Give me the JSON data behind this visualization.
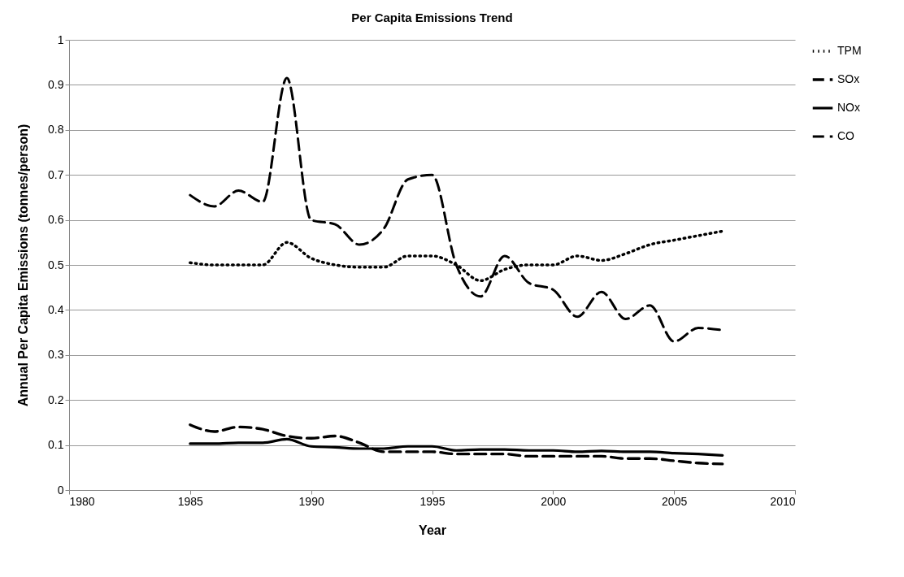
{
  "chart_data": {
    "type": "line",
    "title": "Per Capita Emissions Trend",
    "xlabel": "Year",
    "ylabel": "Annual Per Capita  Emissions (tonnes/person)",
    "x": [
      1985,
      1986,
      1987,
      1988,
      1989,
      1990,
      1991,
      1992,
      1993,
      1994,
      1995,
      1996,
      1997,
      1998,
      1999,
      2000,
      2001,
      2002,
      2003,
      2004,
      2005,
      2006,
      2007
    ],
    "series": [
      {
        "name": "TPM",
        "color": "#000000",
        "line_style": "dotted",
        "values": [
          0.505,
          0.5,
          0.5,
          0.5,
          0.55,
          0.515,
          0.5,
          0.495,
          0.495,
          0.52,
          0.52,
          0.5,
          0.465,
          0.49,
          0.5,
          0.5,
          0.52,
          0.51,
          0.525,
          0.545,
          0.555,
          0.565,
          0.575
        ]
      },
      {
        "name": "SOx",
        "color": "#000000",
        "line_style": "dashed",
        "values": [
          0.145,
          0.13,
          0.14,
          0.135,
          0.12,
          0.115,
          0.12,
          0.105,
          0.085,
          0.085,
          0.085,
          0.08,
          0.08,
          0.08,
          0.075,
          0.075,
          0.075,
          0.075,
          0.07,
          0.07,
          0.065,
          0.06,
          0.058
        ]
      },
      {
        "name": "NOx",
        "color": "#000000",
        "line_style": "solid",
        "values": [
          0.103,
          0.103,
          0.105,
          0.105,
          0.113,
          0.097,
          0.095,
          0.092,
          0.092,
          0.097,
          0.097,
          0.088,
          0.09,
          0.09,
          0.088,
          0.088,
          0.085,
          0.087,
          0.085,
          0.085,
          0.082,
          0.08,
          0.077
        ]
      },
      {
        "name": "CO",
        "color": "#000000",
        "line_style": "dashed",
        "values": [
          0.655,
          0.63,
          0.665,
          0.64,
          0.915,
          0.6,
          0.59,
          0.545,
          0.58,
          0.69,
          0.7,
          0.5,
          0.43,
          0.52,
          0.46,
          0.445,
          0.385,
          0.44,
          0.38,
          0.41,
          0.33,
          0.36,
          0.355
        ]
      }
    ],
    "xlim": [
      1980,
      2010
    ],
    "xticks": [
      1980,
      1985,
      1990,
      1995,
      2000,
      2005,
      2010
    ],
    "ylim": [
      0,
      1
    ],
    "yticks": [
      0,
      0.1,
      0.2,
      0.3,
      0.4,
      0.5,
      0.6,
      0.7,
      0.8,
      0.9,
      1
    ],
    "grid": "y",
    "legend": "right",
    "marker": "none"
  }
}
